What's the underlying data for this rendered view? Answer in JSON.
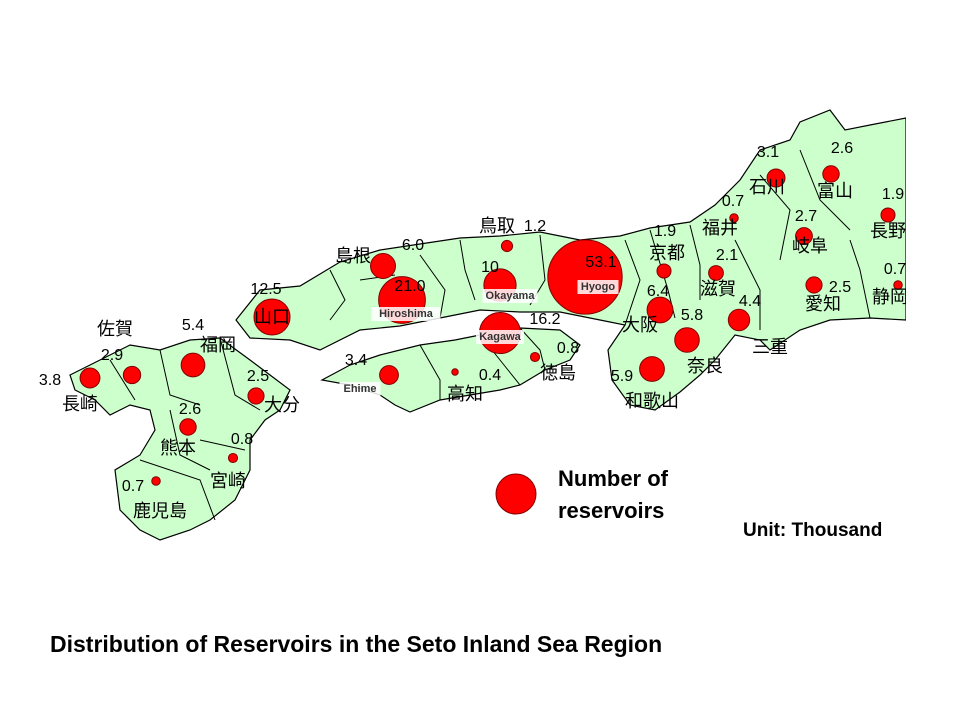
{
  "title": "Distribution of Reservoirs in the Seto Inland Sea Region",
  "unit": "Unit: Thousand",
  "legend": {
    "label_lines": [
      "Number of",
      "reservoirs"
    ]
  },
  "prefectures": [
    {
      "name": "長崎",
      "value": 3.8
    },
    {
      "name": "佐賀",
      "value": 2.9
    },
    {
      "name": "福岡",
      "value": 5.4
    },
    {
      "name": "大分",
      "value": 2.5
    },
    {
      "name": "熊本",
      "value": 2.6
    },
    {
      "name": "宮崎",
      "value": 0.8
    },
    {
      "name": "鹿児島",
      "value": 0.7
    },
    {
      "name": "山口",
      "value": 12.5
    },
    {
      "name": "島根",
      "value": 6,
      "value_label": "6.0"
    },
    {
      "name_en": "Hiroshima",
      "value": 21,
      "value_label": "21.0"
    },
    {
      "name": "鳥取",
      "value": 1.2
    },
    {
      "name_en": "Okayama",
      "value": 10
    },
    {
      "name_en": "Hyogo",
      "value": 53.1
    },
    {
      "name_en": "Kagawa",
      "value": 16.2
    },
    {
      "name": "徳島",
      "value": 0.8
    },
    {
      "name": "高知",
      "value": 0.4
    },
    {
      "name_en": "Ehime",
      "value": 3.4
    },
    {
      "name": "京都",
      "value": 1.9
    },
    {
      "name": "大阪",
      "value": 6.4
    },
    {
      "name": "奈良",
      "value": 5.8
    },
    {
      "name": "和歌山",
      "value": 5.9
    },
    {
      "name": "滋賀",
      "value": 2.1
    },
    {
      "name": "三重",
      "value": 4.4
    },
    {
      "name": "福井",
      "value": 0.7
    },
    {
      "name": "石川",
      "value": 3.1
    },
    {
      "name": "富山",
      "value": 2.6
    },
    {
      "name": "岐阜",
      "value": 2.7
    },
    {
      "name": "愛知",
      "value": 2.5
    },
    {
      "name": "長野",
      "value": 1.9
    },
    {
      "name": "静岡",
      "value": 0.7
    }
  ]
}
